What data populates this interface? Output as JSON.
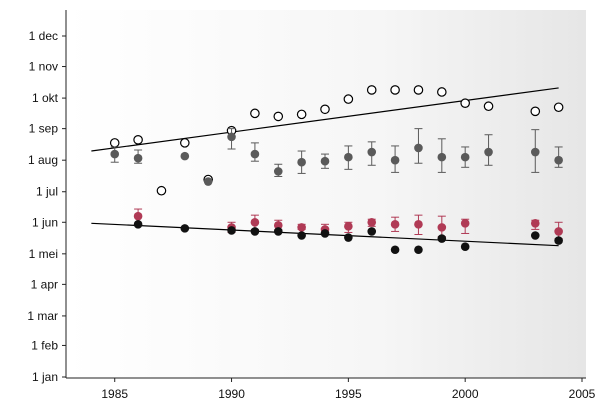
{
  "chart_data": {
    "type": "scatter",
    "title": "",
    "xlabel": "",
    "ylabel": "",
    "xlim": [
      1983,
      2005
    ],
    "ylim": [
      "2000-01-01",
      "2000-12-01"
    ],
    "x_ticks": [
      1985,
      1990,
      1995,
      2000,
      2005
    ],
    "x_tick_labels": [
      "1985",
      "1990",
      "1995",
      "2000",
      "2005"
    ],
    "y_ticks": [
      "2000-01-01",
      "2000-02-01",
      "2000-03-01",
      "2000-04-01",
      "2000-05-01",
      "2000-06-01",
      "2000-07-01",
      "2000-08-01",
      "2000-09-01",
      "2000-10-01",
      "2000-11-01",
      "2000-12-01"
    ],
    "y_tick_labels": [
      "1 jan",
      "1 feb",
      "1 mar",
      "1 apr",
      "1 mei",
      "1 jun",
      "1 jul",
      "1 aug",
      "1 sep",
      "1 okt",
      "1 nov",
      "1 dec"
    ],
    "grid": false,
    "background": "light-gradient",
    "series": [
      {
        "marker": "open-circle",
        "color": "#000000",
        "points": [
          {
            "x": 1985,
            "y": "2000-08-18"
          },
          {
            "x": 1986,
            "y": "2000-08-21"
          },
          {
            "x": 1987,
            "y": "2000-07-02"
          },
          {
            "x": 1988,
            "y": "2000-08-18"
          },
          {
            "x": 1989,
            "y": "2000-07-13"
          },
          {
            "x": 1990,
            "y": "2000-08-30"
          },
          {
            "x": 1991,
            "y": "2000-09-16"
          },
          {
            "x": 1992,
            "y": "2000-09-13"
          },
          {
            "x": 1993,
            "y": "2000-09-15"
          },
          {
            "x": 1994,
            "y": "2000-09-20"
          },
          {
            "x": 1995,
            "y": "2000-09-30"
          },
          {
            "x": 1996,
            "y": "2000-10-09"
          },
          {
            "x": 1997,
            "y": "2000-10-09"
          },
          {
            "x": 1998,
            "y": "2000-10-09"
          },
          {
            "x": 1999,
            "y": "2000-10-07"
          },
          {
            "x": 2000,
            "y": "2000-09-26"
          },
          {
            "x": 2001,
            "y": "2000-09-23"
          },
          {
            "x": 2003,
            "y": "2000-09-18"
          },
          {
            "x": 2004,
            "y": "2000-09-22"
          }
        ]
      },
      {
        "marker": "filled-circle",
        "color": "#5a5a5a",
        "error_bars": true,
        "points": [
          {
            "x": 1985,
            "y": "2000-08-07",
            "yerr_low": "2000-07-30",
            "yerr_high": "2000-08-14"
          },
          {
            "x": 1986,
            "y": "2000-08-03",
            "yerr_low": "2000-07-29",
            "yerr_high": "2000-08-11"
          },
          {
            "x": 1988,
            "y": "2000-08-05"
          },
          {
            "x": 1989,
            "y": "2000-07-11"
          },
          {
            "x": 1990,
            "y": "2000-08-24",
            "yerr_low": "2000-08-12",
            "yerr_high": "2000-09-01"
          },
          {
            "x": 1991,
            "y": "2000-08-07",
            "yerr_low": "2000-07-31",
            "yerr_high": "2000-08-18"
          },
          {
            "x": 1992,
            "y": "2000-07-21",
            "yerr_low": "2000-07-16",
            "yerr_high": "2000-07-28"
          },
          {
            "x": 1993,
            "y": "2000-07-30",
            "yerr_low": "2000-07-19",
            "yerr_high": "2000-08-10"
          },
          {
            "x": 1994,
            "y": "2000-07-31",
            "yerr_low": "2000-07-24",
            "yerr_high": "2000-08-07"
          },
          {
            "x": 1995,
            "y": "2000-08-04",
            "yerr_low": "2000-07-23",
            "yerr_high": "2000-08-15"
          },
          {
            "x": 1996,
            "y": "2000-08-09",
            "yerr_low": "2000-07-27",
            "yerr_high": "2000-08-19"
          },
          {
            "x": 1997,
            "y": "2000-08-01",
            "yerr_low": "2000-07-20",
            "yerr_high": "2000-08-15"
          },
          {
            "x": 1998,
            "y": "2000-08-13",
            "yerr_low": "2000-07-29",
            "yerr_high": "2000-09-01"
          },
          {
            "x": 1999,
            "y": "2000-08-04",
            "yerr_low": "2000-07-20",
            "yerr_high": "2000-08-22"
          },
          {
            "x": 2000,
            "y": "2000-08-04",
            "yerr_low": "2000-07-25",
            "yerr_high": "2000-08-14"
          },
          {
            "x": 2001,
            "y": "2000-08-09",
            "yerr_low": "2000-07-27",
            "yerr_high": "2000-08-26"
          },
          {
            "x": 2003,
            "y": "2000-08-09",
            "yerr_low": "2000-07-20",
            "yerr_high": "2000-08-31"
          },
          {
            "x": 2004,
            "y": "2000-08-01",
            "yerr_low": "2000-07-25",
            "yerr_high": "2000-08-14"
          }
        ]
      },
      {
        "marker": "filled-circle",
        "color": "#b03a55",
        "error_bars": true,
        "points": [
          {
            "x": 1986,
            "y": "2000-06-07",
            "yerr_low": "2000-05-31",
            "yerr_high": "2000-06-14"
          },
          {
            "x": 1990,
            "y": "2000-05-27",
            "yerr_low": "2000-05-22",
            "yerr_high": "2000-06-01"
          },
          {
            "x": 1991,
            "y": "2000-06-01",
            "yerr_low": "2000-05-25",
            "yerr_high": "2000-06-08"
          },
          {
            "x": 1992,
            "y": "2000-05-29",
            "yerr_low": "2000-05-25",
            "yerr_high": "2000-06-03"
          },
          {
            "x": 1993,
            "y": "2000-05-27",
            "yerr_low": "2000-05-25",
            "yerr_high": "2000-05-30"
          },
          {
            "x": 1994,
            "y": "2000-05-25",
            "yerr_low": "2000-05-21",
            "yerr_high": "2000-05-30"
          },
          {
            "x": 1995,
            "y": "2000-05-28",
            "yerr_low": "2000-05-22",
            "yerr_high": "2000-06-01"
          },
          {
            "x": 1996,
            "y": "2000-06-01",
            "yerr_low": "2000-05-28",
            "yerr_high": "2000-06-04"
          },
          {
            "x": 1997,
            "y": "2000-05-30",
            "yerr_low": "2000-05-23",
            "yerr_high": "2000-06-06"
          },
          {
            "x": 1998,
            "y": "2000-05-30",
            "yerr_low": "2000-05-20",
            "yerr_high": "2000-06-08"
          },
          {
            "x": 1999,
            "y": "2000-05-27",
            "yerr_low": "2000-05-18",
            "yerr_high": "2000-06-07"
          },
          {
            "x": 2000,
            "y": "2000-05-31",
            "yerr_low": "2000-05-21",
            "yerr_high": "2000-06-04"
          },
          {
            "x": 2003,
            "y": "2000-05-31",
            "yerr_low": "2000-05-25",
            "yerr_high": "2000-06-03"
          },
          {
            "x": 2004,
            "y": "2000-05-23",
            "yerr_low": "2000-05-16",
            "yerr_high": "2000-06-01"
          }
        ]
      },
      {
        "marker": "filled-circle",
        "color": "#111111",
        "points": [
          {
            "x": 1986,
            "y": "2000-05-30"
          },
          {
            "x": 1988,
            "y": "2000-05-26"
          },
          {
            "x": 1990,
            "y": "2000-05-24"
          },
          {
            "x": 1991,
            "y": "2000-05-23"
          },
          {
            "x": 1992,
            "y": "2000-05-23"
          },
          {
            "x": 1993,
            "y": "2000-05-19"
          },
          {
            "x": 1994,
            "y": "2000-05-21"
          },
          {
            "x": 1995,
            "y": "2000-05-17"
          },
          {
            "x": 1996,
            "y": "2000-05-23"
          },
          {
            "x": 1997,
            "y": "2000-05-05"
          },
          {
            "x": 1998,
            "y": "2000-05-05"
          },
          {
            "x": 1999,
            "y": "2000-05-16"
          },
          {
            "x": 2000,
            "y": "2000-05-08"
          },
          {
            "x": 2003,
            "y": "2000-05-19"
          },
          {
            "x": 2004,
            "y": "2000-05-14"
          }
        ]
      }
    ],
    "trend_lines": [
      {
        "x": [
          1984,
          2004
        ],
        "y": [
          "2000-08-10",
          "2000-10-11"
        ],
        "color": "#000000"
      },
      {
        "x": [
          1984,
          2004
        ],
        "y": [
          "2000-05-31",
          "2000-05-09"
        ],
        "color": "#000000"
      }
    ]
  }
}
